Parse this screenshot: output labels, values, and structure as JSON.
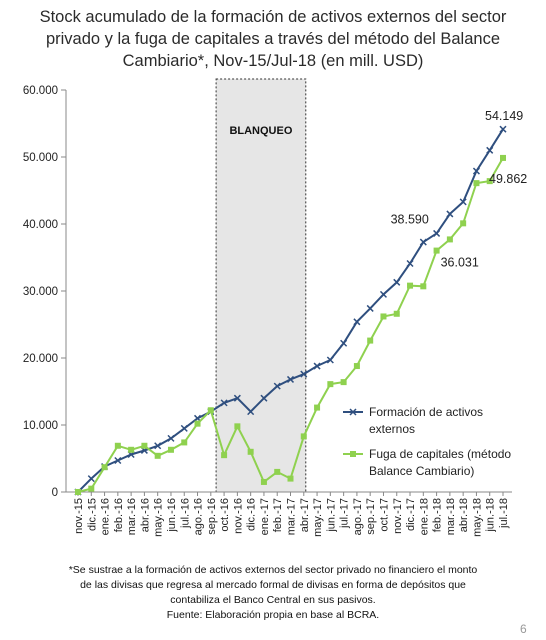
{
  "title_lines": [
    "Stock acumulado de la formación de activos externos del sector",
    "privado y la fuga de capitales a través del método del Balance",
    "Cambiario*, Nov-15/Jul-18 (en mill. USD)"
  ],
  "footnote_lines": [
    "*Se sustrae a la formación de activos externos del sector privado no financiero el monto",
    "de las divisas que regresa al mercado formal de divisas en forma de depósitos que",
    "contabiliza el Banco Central en sus pasivos.",
    "Fuente: Elaboración propia en base al BCRA."
  ],
  "page_number": "6",
  "chart_data": {
    "type": "line",
    "categories": [
      "nov.-15",
      "dic.-15",
      "ene.-16",
      "feb.-16",
      "mar.-16",
      "abr.-16",
      "may.-16",
      "jun.-16",
      "jul.-16",
      "ago.-16",
      "sep.-16",
      "oct.-16",
      "nov.-16",
      "dic.-16",
      "ene.-17",
      "feb.-17",
      "mar.-17",
      "abr.-17",
      "may.-17",
      "jun.-17",
      "jul.-17",
      "ago.-17",
      "sep.-17",
      "oct.-17",
      "nov.-17",
      "dic.-17",
      "ene.-18",
      "feb.-18",
      "mar.-18",
      "abr.-18",
      "may.-18",
      "jun.-18",
      "jul.-18"
    ],
    "y_tick_labels": [
      "0",
      "10.000",
      "20.000",
      "30.000",
      "40.000",
      "50.000",
      "60.000"
    ],
    "ylim": [
      0,
      60000
    ],
    "grid": false,
    "legend_position": "right",
    "shaded_region": {
      "label": "BLANQUEO",
      "from": "oct.-16",
      "to": "abr.-17",
      "color": "#e6e6e6"
    },
    "series": [
      {
        "name_lines": [
          "Formación de activos",
          "externos"
        ],
        "color": "#2f4f7f",
        "marker": "x",
        "values": [
          0,
          2000,
          3800,
          4700,
          5600,
          6200,
          6900,
          8000,
          9500,
          11000,
          12000,
          13300,
          14000,
          12000,
          14000,
          15800,
          16800,
          17600,
          18800,
          19700,
          22200,
          25400,
          27400,
          29500,
          31300,
          34100,
          37300,
          38590,
          41500,
          43300,
          47900,
          51000,
          54149
        ]
      },
      {
        "name_lines": [
          "Fuga de capitales (método",
          "Balance Cambiario)"
        ],
        "color": "#8fd14f",
        "marker": "square",
        "values": [
          0,
          500,
          3700,
          6900,
          6300,
          6900,
          5400,
          6300,
          7400,
          10200,
          12200,
          5500,
          9800,
          6000,
          1500,
          3000,
          2000,
          8300,
          12600,
          16100,
          16400,
          18800,
          22600,
          26200,
          26600,
          30800,
          30700,
          36031,
          37700,
          40100,
          46100,
          46400,
          49862
        ]
      }
    ],
    "data_labels": [
      {
        "series": 0,
        "index": 32,
        "text": "54.149"
      },
      {
        "series": 0,
        "index": 27,
        "text": "38.590"
      },
      {
        "series": 1,
        "index": 27,
        "text": "36.031"
      },
      {
        "series": 1,
        "index": 32,
        "text": "49.862"
      }
    ]
  }
}
